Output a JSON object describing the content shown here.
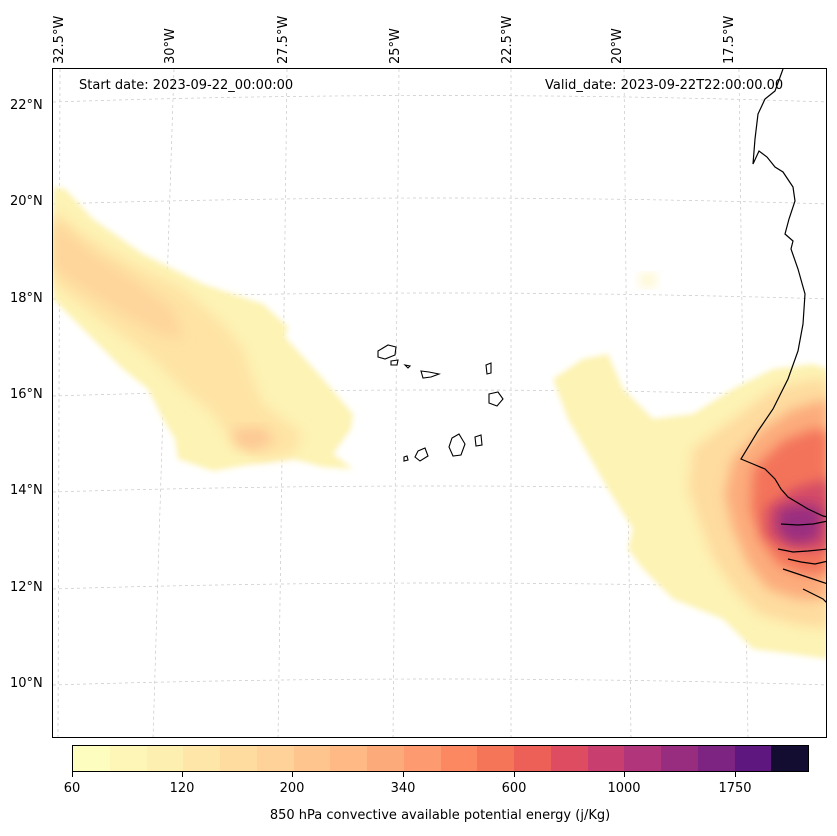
{
  "map": {
    "start_date": "Start date: 2023-09-22_00:00:00",
    "valid_date": "Valid_date: 2023-09-22T22:00:00.00",
    "longitude_labels": [
      "32.5°W",
      "30°W",
      "27.5°W",
      "25°W",
      "22.5°W",
      "20°W",
      "17.5°W"
    ],
    "latitude_labels": [
      "22°N",
      "20°N",
      "18°N",
      "16°N",
      "14°N",
      "12°N",
      "10°N"
    ],
    "gridlines": true,
    "coastline_color": "#000000",
    "gridline_color": "#c8c8c8"
  },
  "colorbar": {
    "title": "850 hPa convective available potential energy (j/Kg)",
    "tick_labels": [
      "60",
      "120",
      "200",
      "340",
      "600",
      "1000",
      "1750"
    ],
    "colors": [
      "#fcfdbf",
      "#fdf6b6",
      "#fdefb0",
      "#fde6a7",
      "#fedc9f",
      "#fed298",
      "#fec68e",
      "#feb984",
      "#fdaa7a",
      "#fd9a6f",
      "#fb8861",
      "#f57558",
      "#ec6058",
      "#dd4c61",
      "#c83e6f",
      "#b1357a",
      "#982d80",
      "#7d2482",
      "#5f1780",
      "#120d31"
    ]
  }
}
